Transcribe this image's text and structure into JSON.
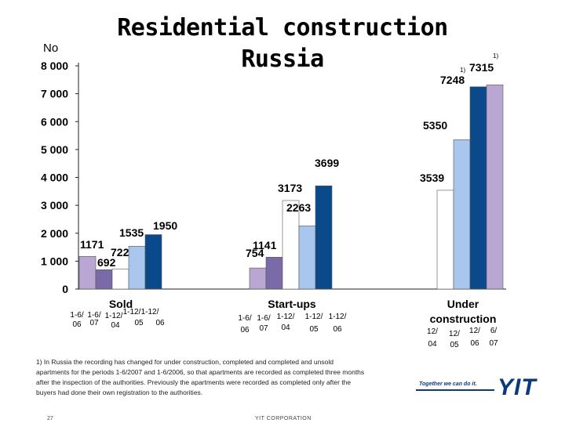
{
  "slide": {
    "title_line1": "Residential construction",
    "title_line2": "Russia",
    "footnote": "1) In Russia the recording has changed for under construction, completed and completed and unsold apartments for the periods 1-6/2007 and 1-6/2006, so that apartments are recorded as completed three months after the inspection of the authorities. Previously the apartments were recorded as completed only after the buyers had done their own registration to the authorities.",
    "page_number": "27",
    "company": "YIT CORPORATION",
    "tagline": "Together we can do it.",
    "logo_text": "YIT"
  },
  "colors": {
    "light_purple": "#b9a6d2",
    "purple": "#7b6aa8",
    "white_bar": "#ffffff",
    "light_blue": "#a9c7ee",
    "dark_blue": "#0b4a8a",
    "bar_stroke": "#555555",
    "brand_blue": "#0a3a7a"
  },
  "chart_data": {
    "type": "bar",
    "ylabel": "No",
    "ylim": [
      0,
      8000
    ],
    "yticks": [
      0,
      1000,
      2000,
      3000,
      4000,
      5000,
      6000,
      7000,
      8000
    ],
    "ytick_labels": [
      "0",
      "1 000",
      "2 000",
      "3 000",
      "4 000",
      "5 000",
      "6 000",
      "7 000",
      "8 000"
    ],
    "grid": false,
    "legend": "none",
    "groups": [
      {
        "name": "Sold",
        "name_lines": [
          "Sold"
        ],
        "bars": [
          {
            "period": "1-6/ 06",
            "value": 1171,
            "label": "1171",
            "color": "light_purple"
          },
          {
            "period": "1-6/ 07",
            "value": 692,
            "label": "692",
            "color": "purple"
          },
          {
            "period": "1-12/ 04",
            "value": 722,
            "label": "722",
            "color": "white_bar"
          },
          {
            "period": "1-12/ 05",
            "value": 1535,
            "label": "1535",
            "color": "light_blue"
          },
          {
            "period": "1-12/ 06",
            "value": 1950,
            "label": "1950",
            "color": "dark_blue"
          }
        ]
      },
      {
        "name": "Start-ups",
        "name_lines": [
          "Start-ups"
        ],
        "bars": [
          {
            "period": "1-6/ 06",
            "value": 754,
            "label": "754",
            "color": "light_purple"
          },
          {
            "period": "1-6/ 07",
            "value": 1141,
            "label": "1141",
            "color": "purple"
          },
          {
            "period": "1-12/ 04",
            "value": 3173,
            "label": "3173",
            "color": "white_bar"
          },
          {
            "period": "1-12/ 05",
            "value": 2263,
            "label": "2263",
            "color": "light_blue"
          },
          {
            "period": "1-12/ 06",
            "value": 3699,
            "label": "3699",
            "color": "dark_blue"
          }
        ]
      },
      {
        "name": "Under construction",
        "name_lines": [
          "Under",
          "construction"
        ],
        "bars": [
          {
            "period": "12/ 04",
            "value": 3539,
            "label": "3539",
            "color": "white_bar"
          },
          {
            "period": "12/ 05",
            "value": 5350,
            "label": "5350",
            "color": "light_blue"
          },
          {
            "period": "12/ 06",
            "value": 7248,
            "label": "7248",
            "color": "dark_blue",
            "note": "1)"
          },
          {
            "period": "6/ 07",
            "value": 7315,
            "label": "7315",
            "color": "light_purple",
            "note": "1)"
          }
        ]
      }
    ]
  }
}
